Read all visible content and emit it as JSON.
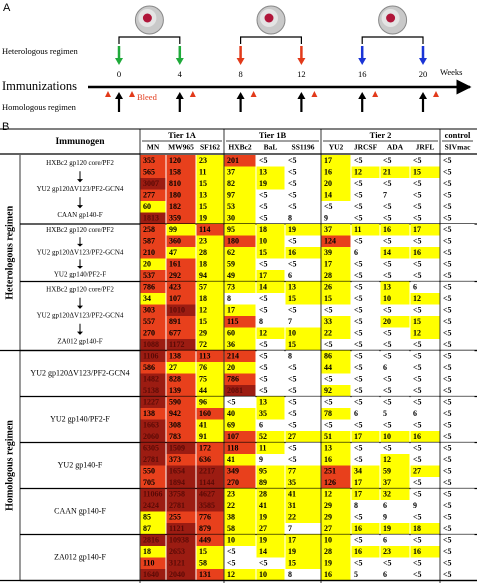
{
  "panel_a": {
    "label": "A",
    "heterologous": "Heterologous regimen",
    "immunizations": "Immunizations",
    "homologous": "Homologous regimen",
    "bleed": "Bleed",
    "unit": "Weeks",
    "weeks": [
      0,
      4,
      8,
      12,
      16,
      20
    ],
    "heterologous_colors": [
      "#1faa3a",
      "#1faa3a",
      "#e23a1a",
      "#e23a1a",
      "#1a34d6",
      "#1a34d6"
    ]
  },
  "table": {
    "label": "B",
    "immunogen_header": "Immunogen",
    "tiers": [
      {
        "label": "Tier 1A",
        "columns": [
          "MN",
          "MW965",
          "SF162"
        ]
      },
      {
        "label": "Tier 1B",
        "columns": [
          "HXBc2",
          "BaL",
          "SS1196"
        ]
      },
      {
        "label": "Tier 2",
        "columns": [
          "YU2",
          "JRCSF",
          "ADA",
          "JRFL"
        ]
      },
      {
        "label": "control",
        "columns": [
          "SIVmac"
        ]
      }
    ],
    "colors": {
      "low": "#ffffff",
      "mid": "#ffff00",
      "high": "#e8401c",
      "top": "#9c1c12"
    },
    "regimens": [
      {
        "label": "Heterologous regimen",
        "groups": [
          {
            "immunogens": [
              "HXBc2 gp120 core/PF2",
              "YU2 gp120ΔV123/PF2-GCN4",
              "CAAN gp140-F"
            ],
            "rows": [
              [
                355,
                120,
                23,
                201,
                "<5",
                "<5",
                17,
                "<5",
                "<5",
                "<5",
                "<5"
              ],
              [
                565,
                158,
                11,
                37,
                13,
                "<5",
                16,
                12,
                21,
                15,
                "<5"
              ],
              [
                3007,
                810,
                15,
                82,
                19,
                "<5",
                20,
                "<5",
                "<5",
                "<5",
                "<5"
              ],
              [
                277,
                180,
                13,
                97,
                "<5",
                "<5",
                14,
                "<5",
                7,
                "<5",
                "<5"
              ],
              [
                60,
                182,
                15,
                53,
                "<5",
                "<5",
                "<5",
                "<5",
                "<5",
                "<5",
                "<5"
              ],
              [
                1813,
                359,
                19,
                30,
                "<5",
                8,
                9,
                "<5",
                "<5",
                "<5",
                "<5"
              ]
            ]
          },
          {
            "immunogens": [
              "HXBc2 gp120 core/PF2",
              "YU2 gp120ΔV123/PF2-GCN4",
              "YU2 gp140/PF2-F"
            ],
            "rows": [
              [
                258,
                99,
                114,
                95,
                18,
                19,
                37,
                11,
                16,
                17,
                "<5"
              ],
              [
                587,
                360,
                23,
                180,
                10,
                "<5",
                124,
                "<5",
                "<5",
                "<5",
                "<5"
              ],
              [
                210,
                47,
                28,
                62,
                15,
                16,
                39,
                6,
                14,
                16,
                "<5"
              ],
              [
                20,
                161,
                18,
                59,
                "<5",
                "<5",
                17,
                "<5",
                "<5",
                "<5",
                "<5"
              ],
              [
                537,
                292,
                94,
                49,
                17,
                6,
                28,
                "<5",
                "<5",
                "<5",
                "<5"
              ]
            ]
          },
          {
            "immunogens": [
              "HXBc2 gp120 core/PF2",
              "YU2 gp120ΔV123/PF2-GCN4",
              "ZA012 gp140-F"
            ],
            "rows": [
              [
                786,
                423,
                57,
                73,
                14,
                13,
                26,
                "<5",
                13,
                6,
                "<5"
              ],
              [
                34,
                107,
                18,
                8,
                "<5",
                15,
                15,
                "<5",
                10,
                12,
                "<5"
              ],
              [
                303,
                1010,
                12,
                17,
                "<5",
                "<5",
                "<5",
                "<5",
                "<5",
                "<5",
                "<5"
              ],
              [
                557,
                891,
                15,
                115,
                8,
                7,
                33,
                "<5",
                20,
                15,
                "<5"
              ],
              [
                270,
                677,
                29,
                60,
                12,
                10,
                22,
                "<5",
                "<5",
                12,
                "<5"
              ],
              [
                1088,
                1172,
                72,
                36,
                "<5",
                15,
                "<5",
                "<5",
                "<5",
                "<5",
                "<5"
              ]
            ]
          }
        ]
      },
      {
        "label": "Homologous regimen",
        "groups": [
          {
            "immunogens": [
              "YU2 gp120ΔV123/PF2-GCN4"
            ],
            "rows": [
              [
                1106,
                138,
                113,
                214,
                "<5",
                8,
                86,
                "<5",
                "<5",
                "<5",
                "<5"
              ],
              [
                586,
                27,
                76,
                20,
                "<5",
                "<5",
                44,
                "<5",
                6,
                "<5",
                "<5"
              ],
              [
                1482,
                828,
                75,
                786,
                "<5",
                "<5",
                "<5",
                "<5",
                "<5",
                "<5",
                "<5"
              ],
              [
                5138,
                139,
                44,
                2081,
                "<5",
                "<5",
                92,
                "<5",
                "<5",
                "<5",
                "<5"
              ]
            ]
          },
          {
            "immunogens": [
              "YU2 gp140/PF2-F"
            ],
            "rows": [
              [
                1227,
                590,
                96,
                "<5",
                13,
                "<5",
                "<5",
                "<5",
                "<5",
                "<5",
                "<5"
              ],
              [
                138,
                942,
                160,
                40,
                35,
                "<5",
                78,
                6,
                5,
                6,
                "<5"
              ],
              [
                1663,
                308,
                41,
                69,
                6,
                "<5",
                "<5",
                "<5",
                "<5",
                "<5",
                "<5"
              ],
              [
                2060,
                783,
                91,
                107,
                52,
                27,
                51,
                17,
                10,
                16,
                "<5"
              ]
            ]
          },
          {
            "immunogens": [
              "YU2 gp140-F"
            ],
            "rows": [
              [
                6305,
                1509,
                172,
                118,
                11,
                "<5",
                13,
                "<5",
                "<5",
                "<5",
                "<5"
              ],
              [
                2781,
                373,
                636,
                41,
                9,
                "<5",
                16,
                "<5",
                12,
                "<5",
                "<5"
              ],
              [
                550,
                1654,
                2217,
                349,
                95,
                77,
                251,
                34,
                59,
                27,
                "<5"
              ],
              [
                705,
                1894,
                1144,
                270,
                89,
                35,
                126,
                17,
                37,
                "<5",
                "<5"
              ]
            ]
          },
          {
            "immunogens": [
              "CAAN gp140-F"
            ],
            "rows": [
              [
                11066,
                3758,
                4627,
                23,
                28,
                41,
                12,
                17,
                32,
                "<5",
                "<5"
              ],
              [
                2424,
                2781,
                3585,
                22,
                41,
                31,
                29,
                8,
                6,
                9,
                "<5"
              ],
              [
                85,
                255,
                776,
                38,
                19,
                22,
                29,
                "<5",
                9,
                "<5",
                "<5"
              ],
              [
                87,
                1121,
                879,
                58,
                27,
                7,
                27,
                16,
                19,
                18,
                "<5"
              ]
            ]
          },
          {
            "immunogens": [
              "ZA012 gp140-F"
            ],
            "rows": [
              [
                2816,
                10938,
                449,
                10,
                19,
                17,
                10,
                "<5",
                6,
                "<5",
                "<5"
              ],
              [
                18,
                2653,
                15,
                "<5",
                14,
                19,
                28,
                16,
                23,
                16,
                "<5"
              ],
              [
                110,
                3121,
                58,
                "<5",
                "<5",
                15,
                19,
                "<5",
                "<5",
                "<5",
                "<5"
              ],
              [
                1640,
                2040,
                131,
                12,
                10,
                8,
                16,
                5,
                6,
                "<5",
                "<5"
              ]
            ]
          }
        ]
      }
    ]
  }
}
